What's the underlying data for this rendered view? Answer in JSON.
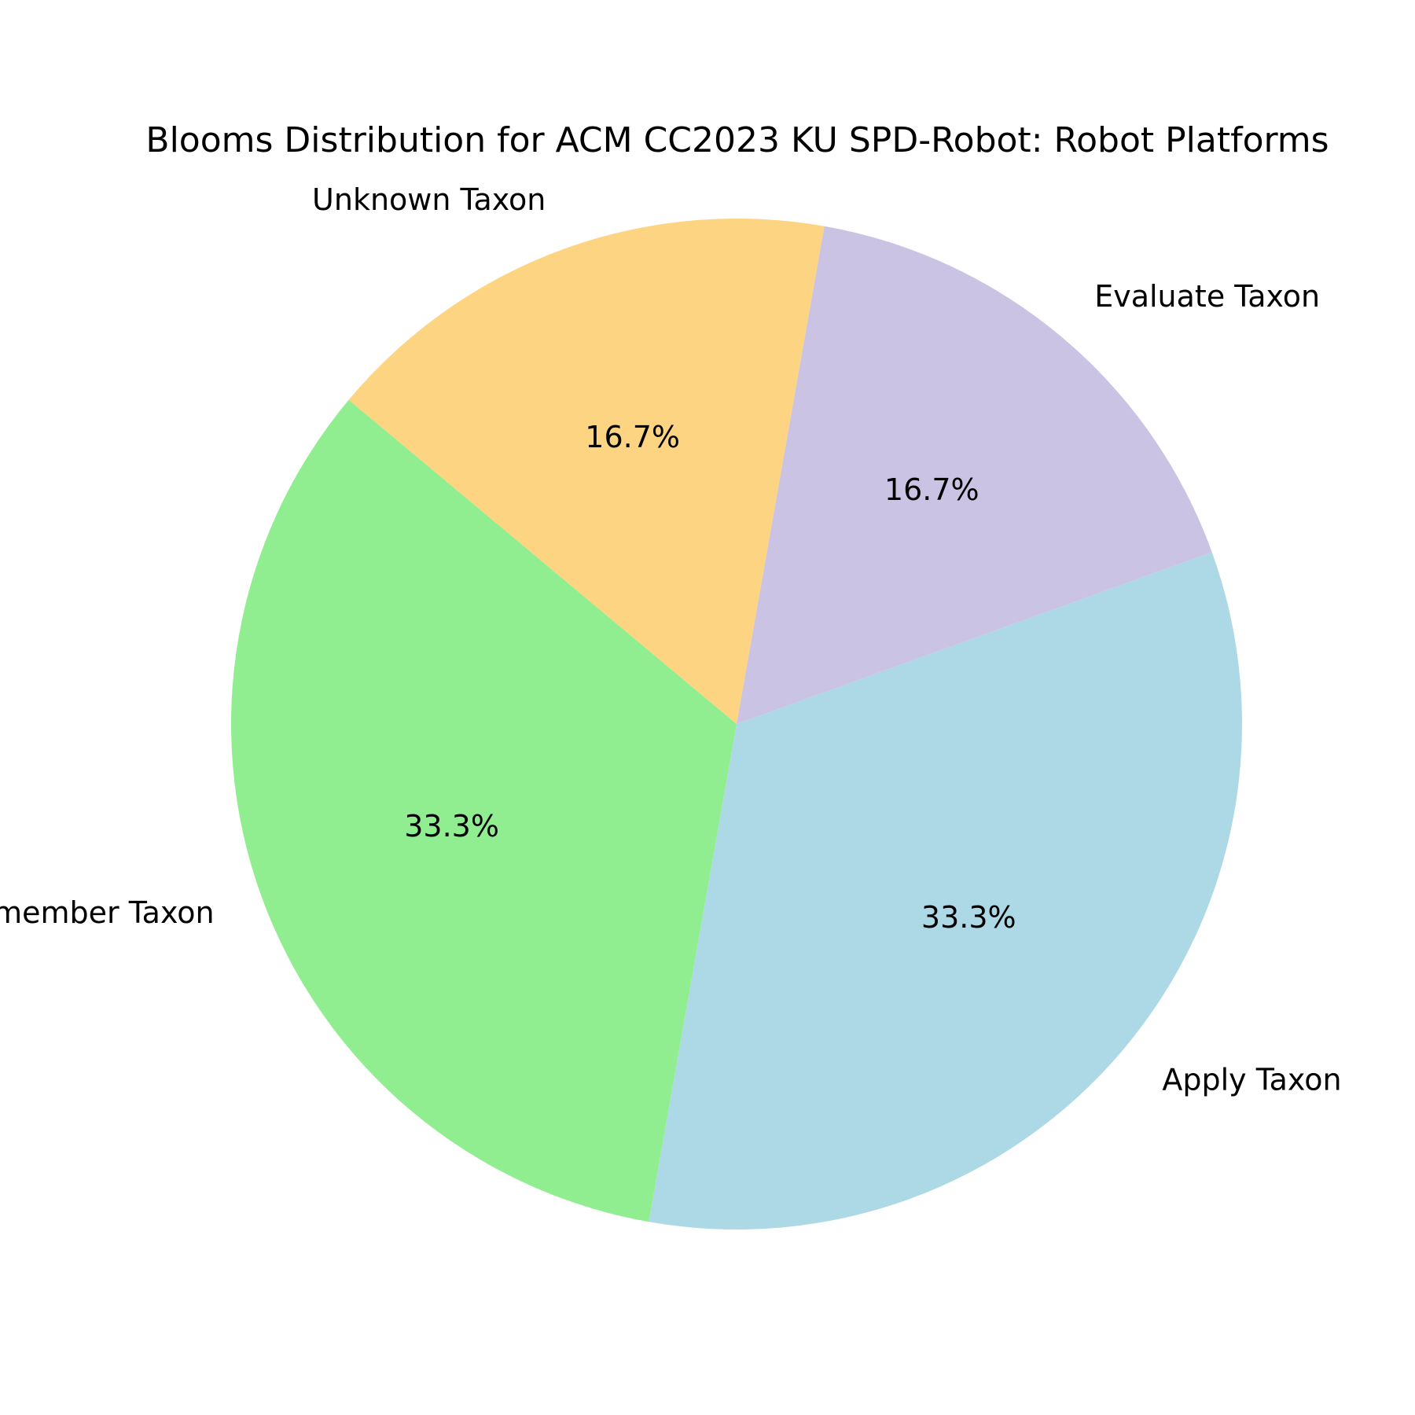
{
  "chart_data": {
    "type": "pie",
    "title": "Blooms Distribution for ACM CC2023 KU SPD-Robot: Robot Platforms",
    "slices": [
      {
        "label": "Unknown Taxon",
        "value": 16.7,
        "pct_label": "16.7%",
        "color": "#FDD582"
      },
      {
        "label": "Remember Taxon",
        "value": 33.3,
        "pct_label": "33.3%",
        "color": "#90EE90"
      },
      {
        "label": "Apply Taxon",
        "value": 33.3,
        "pct_label": "33.3%",
        "color": "#ADD8E6"
      },
      {
        "label": "Evaluate Taxon",
        "value": 16.7,
        "pct_label": "16.7%",
        "color": "#CBC3E3"
      }
    ],
    "start_angle_deg": 80,
    "direction": "counterclockwise",
    "legend": "none"
  }
}
